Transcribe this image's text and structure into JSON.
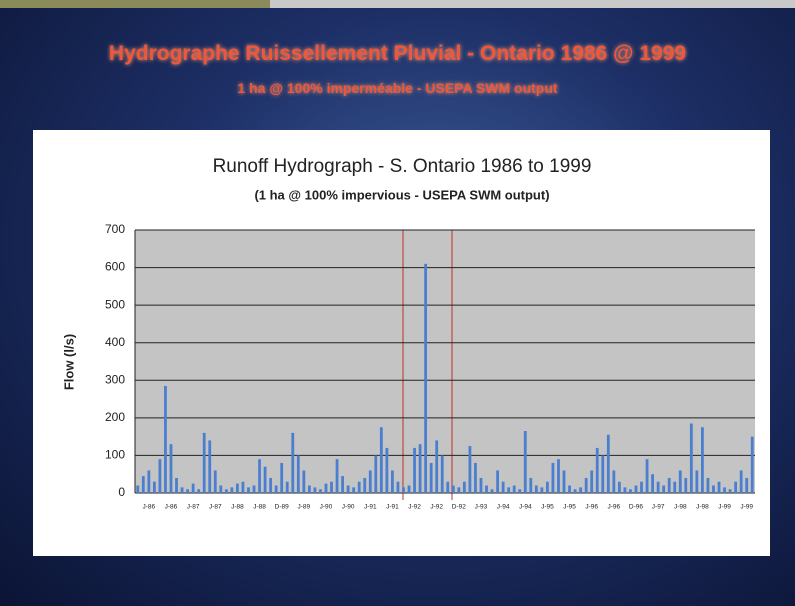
{
  "slide": {
    "title": "Hydrographe Ruissellement Pluvial - Ontario 1986 @ 1999",
    "subtitle": "1 ha @ 100% imperméable - USEPA SWM output"
  },
  "chart_data": {
    "type": "bar",
    "title": "Runoff Hydrograph - S. Ontario 1986 to 1999",
    "subtitle": "(1 ha @ 100% impervious - USEPA SWM output)",
    "y_label": "Flow (l/s)",
    "color": "#4a7fd0",
    "grid": true,
    "ylim": [
      0,
      700
    ],
    "yticks": [
      0,
      100,
      200,
      300,
      400,
      500,
      600,
      700
    ],
    "categories": [
      null,
      null,
      "J-86",
      null,
      null,
      null,
      "J-86",
      null,
      null,
      null,
      "J-87",
      null,
      null,
      null,
      "J-87",
      null,
      null,
      null,
      "J-88",
      null,
      null,
      null,
      "J-88",
      null,
      null,
      null,
      "D-89",
      null,
      null,
      null,
      "J-89",
      null,
      null,
      null,
      "J-90",
      null,
      null,
      null,
      "J-90",
      null,
      null,
      null,
      "J-91",
      null,
      null,
      null,
      "J-91",
      null,
      null,
      null,
      "J-92",
      null,
      null,
      null,
      "J-92",
      null,
      null,
      null,
      "D-92",
      null,
      null,
      null,
      "J-93",
      null,
      null,
      null,
      "J-94",
      null,
      null,
      null,
      "J-94",
      null,
      null,
      null,
      "J-95",
      null,
      null,
      null,
      "J-95",
      null,
      null,
      null,
      "J-96",
      null,
      null,
      null,
      "J-96",
      null,
      null,
      null,
      "D-96",
      null,
      null,
      null,
      "J-97",
      null,
      null,
      null,
      "J-98",
      null,
      null,
      null,
      "J-98",
      null,
      null,
      null,
      "J-99",
      null,
      null,
      null,
      "J-99",
      null
    ],
    "values": [
      20,
      45,
      60,
      30,
      90,
      285,
      130,
      40,
      15,
      10,
      25,
      10,
      160,
      140,
      60,
      20,
      10,
      15,
      25,
      30,
      15,
      20,
      90,
      70,
      40,
      20,
      80,
      30,
      160,
      100,
      60,
      20,
      15,
      10,
      25,
      30,
      90,
      45,
      20,
      15,
      30,
      40,
      60,
      100,
      175,
      120,
      60,
      30,
      15,
      20,
      120,
      130,
      610,
      80,
      140,
      100,
      30,
      20,
      15,
      30,
      125,
      80,
      40,
      20,
      10,
      60,
      30,
      15,
      20,
      10,
      165,
      40,
      20,
      15,
      30,
      80,
      90,
      60,
      20,
      10,
      15,
      40,
      60,
      120,
      100,
      155,
      60,
      30,
      15,
      10,
      20,
      30,
      90,
      50,
      30,
      20,
      40,
      30,
      60,
      40,
      185,
      60,
      175,
      40,
      20,
      30,
      15,
      10,
      30,
      60,
      40,
      150
    ]
  }
}
